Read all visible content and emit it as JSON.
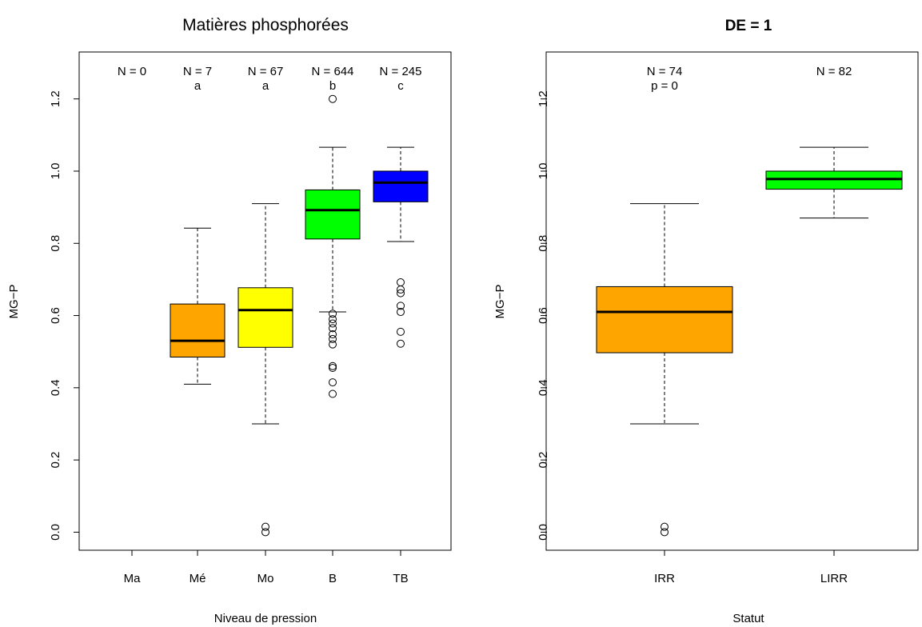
{
  "chart_data": [
    {
      "type": "box",
      "title": "Matières phosphorées",
      "xlabel": "Niveau de pression",
      "ylabel": "MG−P",
      "ylim": [
        -0.05,
        1.33
      ],
      "yticks": [
        "0.0",
        "0.2",
        "0.4",
        "0.6",
        "0.8",
        "1.0",
        "1.2"
      ],
      "categories": [
        "Ma",
        "Mé",
        "Mo",
        "B",
        "TB"
      ],
      "boxes": [
        {
          "label": "Ma",
          "n_label": "N = 0",
          "group": "",
          "color": "",
          "empty": true
        },
        {
          "label": "Mé",
          "n_label": "N = 7",
          "group": "a",
          "color": "#FFA500",
          "whisker_low": 0.41,
          "q1": 0.485,
          "median": 0.53,
          "q3": 0.632,
          "whisker_high": 0.842,
          "outliers": []
        },
        {
          "label": "Mo",
          "n_label": "N = 67",
          "group": "a",
          "color": "#FFFF00",
          "whisker_low": 0.3,
          "q1": 0.512,
          "median": 0.615,
          "q3": 0.677,
          "whisker_high": 0.91,
          "outliers": [
            0.0,
            0.015
          ]
        },
        {
          "label": "B",
          "n_label": "N = 644",
          "group": "b",
          "color": "#00FF00",
          "whisker_low": 0.61,
          "q1": 0.812,
          "median": 0.892,
          "q3": 0.948,
          "whisker_high": 1.066,
          "outliers": [
            1.2,
            0.605,
            0.59,
            0.578,
            0.565,
            0.548,
            0.535,
            0.52,
            0.46,
            0.455,
            0.415,
            0.383
          ]
        },
        {
          "label": "TB",
          "n_label": "N = 245",
          "group": "c",
          "color": "#0000FF",
          "whisker_low": 0.805,
          "q1": 0.915,
          "median": 0.968,
          "q3": 1.0,
          "whisker_high": 1.066,
          "outliers": [
            0.692,
            0.672,
            0.662,
            0.627,
            0.61,
            0.555,
            0.522
          ]
        }
      ]
    },
    {
      "type": "box",
      "title": "DE = 1",
      "xlabel": "Statut",
      "ylabel": "MG−P",
      "ylim": [
        -0.05,
        1.33
      ],
      "yticks": [
        "0.0",
        "0.2",
        "0.4",
        "0.6",
        "0.8",
        "1.0",
        "1.2"
      ],
      "categories": [
        "IRR",
        "LIRR"
      ],
      "p_label": "p =  0",
      "boxes": [
        {
          "label": "IRR",
          "n_label": "N = 74",
          "color": "#FFA500",
          "whisker_low": 0.3,
          "q1": 0.497,
          "median": 0.61,
          "q3": 0.68,
          "whisker_high": 0.91,
          "outliers": [
            0.0,
            0.015
          ]
        },
        {
          "label": "LIRR",
          "n_label": "N = 82",
          "color": "#00FF00",
          "whisker_low": 0.87,
          "q1": 0.95,
          "median": 0.978,
          "q3": 1.0,
          "whisker_high": 1.066,
          "outliers": []
        }
      ]
    }
  ]
}
